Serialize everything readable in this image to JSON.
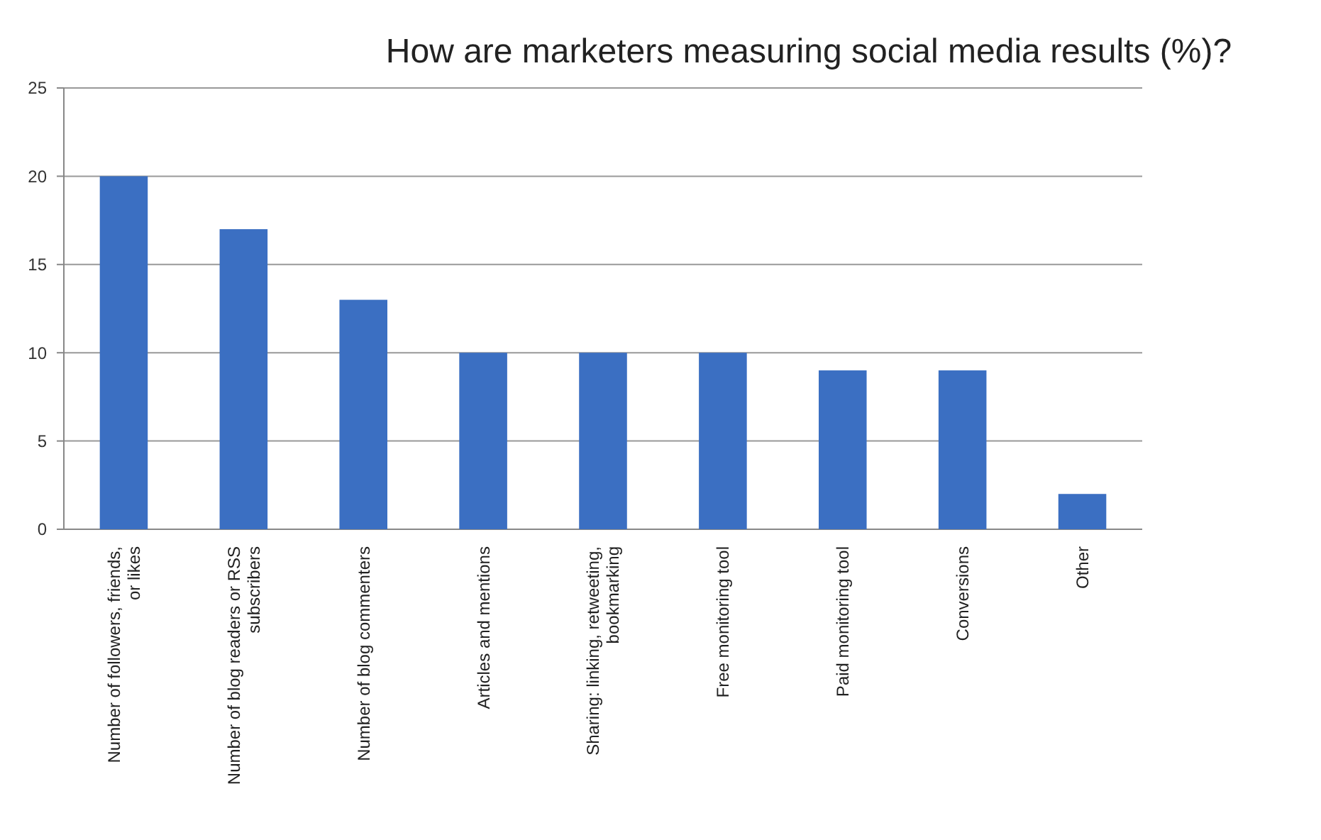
{
  "chart_data": {
    "type": "bar",
    "title": "How are marketers measuring social media results (%)?",
    "categories": [
      "Number of followers, friends, or likes",
      "Number of blog readers or RSS subscribers",
      "Number of blog commenters",
      "Articles and mentions",
      "Sharing: linking, retweeting, bookmarking",
      "Free monitoring tool",
      "Paid monitoring tool",
      "Conversions",
      "Other"
    ],
    "values": [
      20,
      17,
      13,
      10,
      10,
      10,
      9,
      9,
      2
    ],
    "color": "#3b6fc2",
    "ylim": [
      0,
      25
    ],
    "yticks": [
      0,
      5,
      10,
      15,
      20,
      25
    ],
    "grid": "y"
  }
}
